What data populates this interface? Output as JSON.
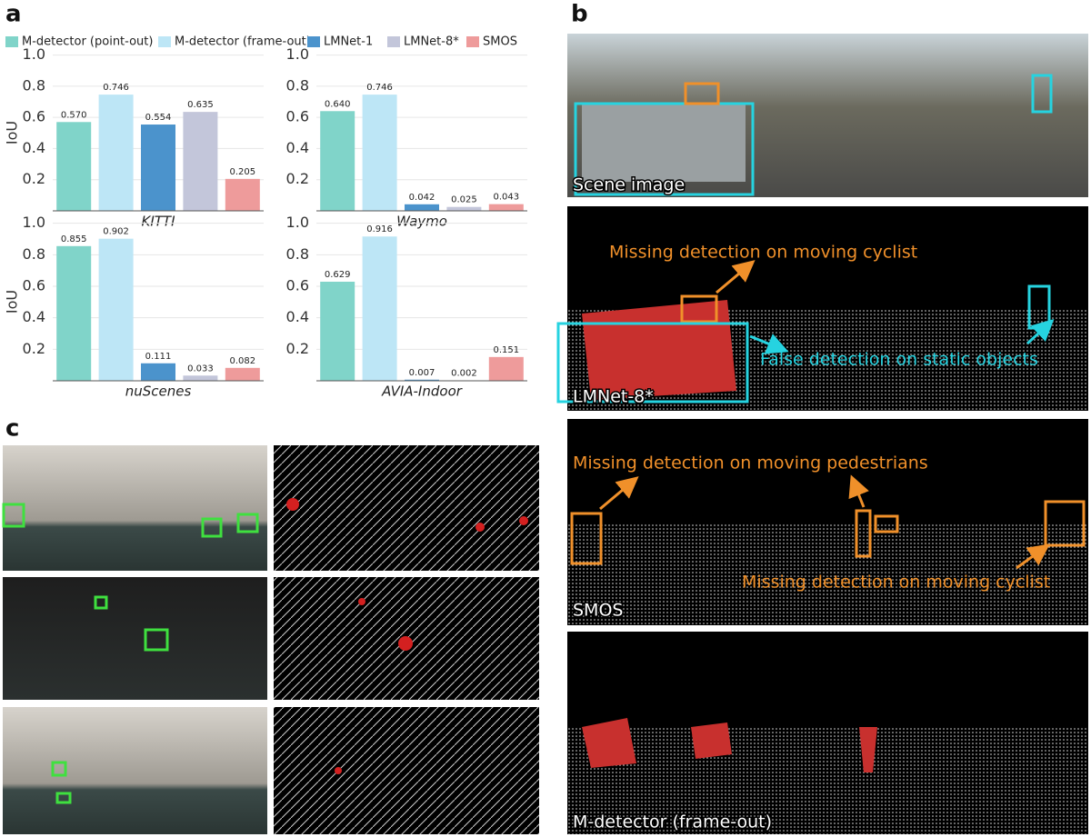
{
  "panel_labels": {
    "a": "a",
    "b": "b",
    "c": "c"
  },
  "legend": [
    {
      "name": "M-detector (point-out)",
      "color": "#80d4c9"
    },
    {
      "name": "M-detector (frame-out)",
      "color": "#bde6f6"
    },
    {
      "name": "LMNet-1",
      "color": "#4b93cc"
    },
    {
      "name": "LMNet-8*",
      "color": "#c3c6da"
    },
    {
      "name": "SMOS",
      "color": "#ee9b9b"
    }
  ],
  "chart_data": [
    {
      "type": "bar",
      "xlabel": "KITTI",
      "ylabel": "IoU",
      "values": [
        0.57,
        0.746,
        0.554,
        0.635,
        0.205
      ],
      "value_labels": [
        "0.570",
        "0.746",
        "0.554",
        "0.635",
        "0.205"
      ],
      "ylim": [
        0,
        1.05
      ],
      "yticks": [
        0.2,
        0.4,
        0.6,
        0.8,
        {
          "value": 1,
          "label": "1.0"
        }
      ],
      "grid": true
    },
    {
      "type": "bar",
      "xlabel": "Waymo",
      "values": [
        0.64,
        0.746,
        0.042,
        0.025,
        0.043
      ],
      "value_labels": [
        "0.640",
        "0.746",
        "0.042",
        "0.025",
        "0.043"
      ],
      "ylim": [
        0,
        1.05
      ],
      "yticks": [
        0.2,
        0.4,
        0.6,
        0.8,
        {
          "value": 1,
          "label": "1.0"
        }
      ],
      "grid": true
    },
    {
      "type": "bar",
      "xlabel": "nuScenes",
      "ylabel": "IoU",
      "values": [
        0.855,
        0.902,
        0.111,
        0.033,
        0.082
      ],
      "value_labels": [
        "0.855",
        "0.902",
        "0.111",
        "0.033",
        "0.082"
      ],
      "ylim": [
        0,
        1.05
      ],
      "yticks": [
        0.2,
        0.4,
        0.6,
        0.8,
        {
          "value": 1,
          "label": "1.0"
        }
      ],
      "grid": true
    },
    {
      "type": "bar",
      "xlabel": "AVIA-Indoor",
      "values": [
        0.629,
        0.916,
        0.007,
        0.002,
        0.151
      ],
      "value_labels": [
        "0.629",
        "0.916",
        "0.007",
        "0.002",
        "0.151"
      ],
      "ylim": [
        0,
        1.05
      ],
      "yticks": [
        0.2,
        0.4,
        0.6,
        0.8,
        {
          "value": 1,
          "label": "1.0"
        }
      ],
      "grid": true
    }
  ],
  "panel_b": {
    "captions": [
      "Scene image",
      "LMNet-8*",
      "SMOS",
      "M-detector (frame-out)"
    ],
    "annotations": [
      "Missing detection on moving cyclist",
      "False detection on static objects",
      "Missing detection on moving pedestrians",
      "Missing detection on moving cyclist"
    ]
  }
}
